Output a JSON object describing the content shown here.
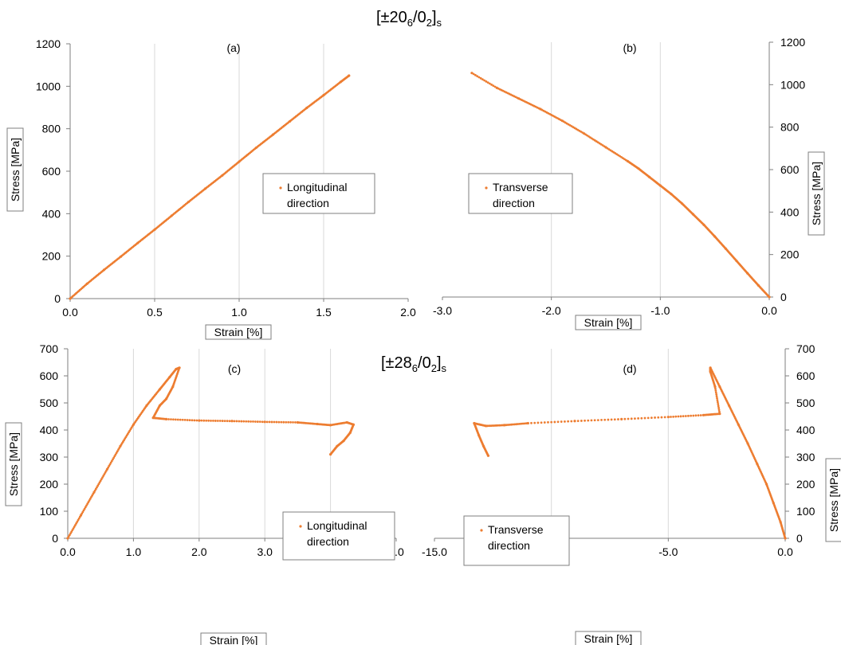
{
  "figure": {
    "title_top": {
      "main": "[±20",
      "sub1": "6",
      "mid": "/0",
      "sub2": "2",
      "end": "]",
      "sub3": "s"
    },
    "title_bottom": {
      "main": "[±28",
      "sub1": "6",
      "mid": "/0",
      "sub2": "2",
      "end": "]",
      "sub3": "s"
    }
  },
  "colors": {
    "series": "#ed7d31",
    "grid": "#d9d9d9",
    "axis": "#7f7f7f"
  },
  "chart_data": [
    {
      "id": "a",
      "type": "scatter",
      "panel_label": "(a)",
      "xlabel": "Strain [%]",
      "ylabel": "Stress [MPa]",
      "xlim": [
        0,
        2
      ],
      "ylim": [
        0,
        1200
      ],
      "xticks": [
        "0.0",
        "0.5",
        "1.0",
        "1.5",
        "2.0"
      ],
      "yticks": [
        "0",
        "200",
        "400",
        "600",
        "800",
        "1000",
        "1200"
      ],
      "legend": {
        "label_line1": "Longitudinal",
        "label_line2": "direction"
      },
      "series": [
        {
          "x": [
            0,
            0.1,
            0.2,
            0.3,
            0.4,
            0.5,
            0.6,
            0.7,
            0.8,
            0.9,
            1.0,
            1.1,
            1.2,
            1.3,
            1.4,
            1.5,
            1.6,
            1.65
          ],
          "y": [
            0,
            70,
            135,
            198,
            262,
            325,
            390,
            455,
            518,
            580,
            645,
            710,
            772,
            835,
            898,
            958,
            1020,
            1050
          ]
        }
      ],
      "grid": true,
      "yaxis_side": "left"
    },
    {
      "id": "b",
      "type": "scatter",
      "panel_label": "(b)",
      "xlabel": "Strain [%]",
      "ylabel": "Stress [MPa]",
      "xlim": [
        -3,
        0
      ],
      "ylim": [
        0,
        1200
      ],
      "xticks": [
        "-3.0",
        "-2.0",
        "-1.0",
        "0.0"
      ],
      "yticks": [
        "0",
        "200",
        "400",
        "600",
        "800",
        "1000",
        "1200"
      ],
      "legend": {
        "label_line1": "Transverse",
        "label_line2": "direction"
      },
      "series": [
        {
          "x": [
            0,
            -0.1,
            -0.2,
            -0.3,
            -0.4,
            -0.5,
            -0.6,
            -0.7,
            -0.8,
            -0.9,
            -1.0,
            -1.1,
            -1.2,
            -1.3,
            -1.5,
            -1.7,
            -1.9,
            -2.1,
            -2.3,
            -2.5,
            -2.73
          ],
          "y": [
            0,
            55,
            112,
            170,
            228,
            285,
            340,
            390,
            440,
            485,
            525,
            565,
            605,
            640,
            705,
            770,
            830,
            885,
            935,
            985,
            1055
          ]
        }
      ],
      "grid": true,
      "yaxis_side": "right"
    },
    {
      "id": "c",
      "type": "scatter",
      "panel_label": "(c)",
      "xlabel": "Strain [%]",
      "ylabel": "Stress [MPa]",
      "xlim": [
        0,
        5
      ],
      "ylim": [
        0,
        700
      ],
      "xticks": [
        "0.0",
        "1.0",
        "2.0",
        "3.0",
        "4.0",
        "5.0"
      ],
      "yticks": [
        "0",
        "100",
        "200",
        "300",
        "400",
        "500",
        "600",
        "700"
      ],
      "legend": {
        "label_line1": "Longitudinal",
        "label_line2": "direction"
      },
      "series": [
        {
          "x": [
            0,
            0.2,
            0.4,
            0.6,
            0.8,
            1.0,
            1.2,
            1.4,
            1.55,
            1.65,
            1.7,
            1.6,
            1.5,
            1.4,
            1.3,
            1.5,
            2.0,
            2.5,
            3.0,
            3.5,
            3.8,
            4.0,
            4.25,
            4.35,
            4.3,
            4.2,
            4.1,
            4.0
          ],
          "y": [
            0,
            85,
            170,
            255,
            340,
            420,
            490,
            550,
            595,
            625,
            630,
            560,
            515,
            490,
            445,
            440,
            435,
            433,
            430,
            428,
            422,
            418,
            428,
            420,
            390,
            360,
            340,
            310
          ]
        }
      ],
      "grid": true,
      "yaxis_side": "left"
    },
    {
      "id": "d",
      "type": "scatter",
      "panel_label": "(d)",
      "xlabel": "Strain [%]",
      "ylabel": "Stress [MPa]",
      "xlim": [
        -15,
        0
      ],
      "ylim": [
        0,
        700
      ],
      "xticks": [
        "-15.0",
        "-10.0",
        "-5.0",
        "0.0"
      ],
      "yticks": [
        "0",
        "100",
        "200",
        "300",
        "400",
        "500",
        "600",
        "700"
      ],
      "legend": {
        "label_line1": "Transverse",
        "label_line2": "direction"
      },
      "series": [
        {
          "x": [
            0,
            -0.2,
            -0.5,
            -0.8,
            -1.2,
            -1.6,
            -2.0,
            -2.4,
            -2.8,
            -3.2,
            -3.2,
            -3.0,
            -2.8,
            -3.5,
            -5.0,
            -7.0,
            -9.0,
            -11.0,
            -12.0,
            -12.8,
            -13.3,
            -13.1,
            -12.9,
            -12.7
          ],
          "y": [
            0,
            60,
            130,
            200,
            275,
            350,
            420,
            490,
            560,
            630,
            615,
            560,
            460,
            455,
            448,
            440,
            433,
            425,
            418,
            415,
            425,
            380,
            340,
            305
          ]
        }
      ],
      "grid": true,
      "yaxis_side": "right"
    }
  ]
}
